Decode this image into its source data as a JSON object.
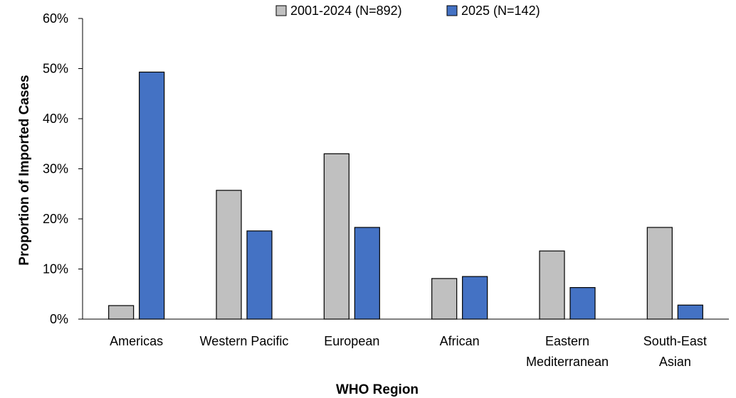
{
  "chart_data": {
    "type": "bar",
    "title": "",
    "xlabel": "WHO Region",
    "ylabel": "Proportion of Imported Cases",
    "categories": [
      [
        "Americas"
      ],
      [
        "Western Pacific"
      ],
      [
        "European"
      ],
      [
        "African"
      ],
      [
        "Eastern",
        "Mediterranean"
      ],
      [
        "South-East",
        "Asian"
      ]
    ],
    "series": [
      {
        "name": "2001-2024 (N=892)",
        "color": "#c0c0c0",
        "values": [
          2.7,
          25.7,
          33.0,
          8.1,
          13.6,
          18.3
        ]
      },
      {
        "name": "2025 (N=142)",
        "color": "#4472c4",
        "values": [
          49.3,
          17.6,
          18.3,
          8.5,
          6.3,
          2.8
        ]
      }
    ],
    "ylim": [
      0,
      60
    ],
    "yticks": [
      0,
      10,
      20,
      30,
      40,
      50,
      60
    ],
    "ytick_labels": [
      "0%",
      "10%",
      "20%",
      "30%",
      "40%",
      "50%",
      "60%"
    ],
    "grid": false,
    "legend_position": "top"
  }
}
